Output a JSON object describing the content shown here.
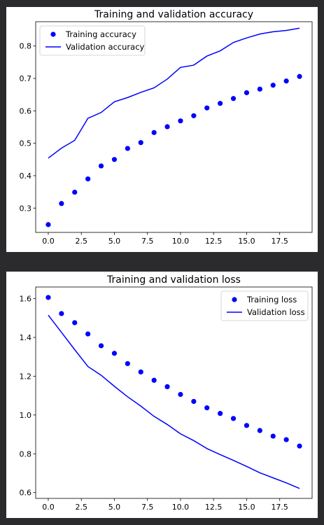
{
  "chart_data": [
    {
      "type": "line",
      "title": "Training and validation accuracy",
      "xlabel": "",
      "ylabel": "",
      "xlim": [
        -0.95,
        19.95
      ],
      "ylim": [
        0.225,
        0.875
      ],
      "xticks": [
        0.0,
        2.5,
        5.0,
        7.5,
        10.0,
        12.5,
        15.0,
        17.5
      ],
      "xtick_labels": [
        "0.0",
        "2.5",
        "5.0",
        "7.5",
        "10.0",
        "12.5",
        "15.0",
        "17.5"
      ],
      "yticks": [
        0.3,
        0.4,
        0.5,
        0.6,
        0.7,
        0.8
      ],
      "ytick_labels": [
        "0.3",
        "0.4",
        "0.5",
        "0.6",
        "0.7",
        "0.8"
      ],
      "legend_position": "upper-left",
      "grid": false,
      "x": [
        0,
        1,
        2,
        3,
        4,
        5,
        6,
        7,
        8,
        9,
        10,
        11,
        12,
        13,
        14,
        15,
        16,
        17,
        18,
        19
      ],
      "series": [
        {
          "name": "Training accuracy",
          "style": "markers",
          "color": "#0000ff",
          "values": [
            0.249,
            0.314,
            0.349,
            0.39,
            0.43,
            0.45,
            0.484,
            0.502,
            0.533,
            0.551,
            0.569,
            0.585,
            0.609,
            0.623,
            0.638,
            0.656,
            0.667,
            0.679,
            0.692,
            0.706
          ]
        },
        {
          "name": "Validation accuracy",
          "style": "line",
          "color": "#0000ff",
          "values": [
            0.454,
            0.485,
            0.509,
            0.577,
            0.595,
            0.628,
            0.641,
            0.657,
            0.671,
            0.698,
            0.734,
            0.741,
            0.769,
            0.785,
            0.811,
            0.825,
            0.837,
            0.844,
            0.848,
            0.855
          ]
        }
      ]
    },
    {
      "type": "line",
      "title": "Training and validation loss",
      "xlabel": "",
      "ylabel": "",
      "xlim": [
        -0.95,
        19.95
      ],
      "ylim": [
        0.57,
        1.66
      ],
      "xticks": [
        0.0,
        2.5,
        5.0,
        7.5,
        10.0,
        12.5,
        15.0,
        17.5
      ],
      "xtick_labels": [
        "0.0",
        "2.5",
        "5.0",
        "7.5",
        "10.0",
        "12.5",
        "15.0",
        "17.5"
      ],
      "yticks": [
        0.6,
        0.8,
        1.0,
        1.2,
        1.4,
        1.6
      ],
      "ytick_labels": [
        "0.6",
        "0.8",
        "1.0",
        "1.2",
        "1.4",
        "1.6"
      ],
      "legend_position": "upper-right",
      "grid": false,
      "x": [
        0,
        1,
        2,
        3,
        4,
        5,
        6,
        7,
        8,
        9,
        10,
        11,
        12,
        13,
        14,
        15,
        16,
        17,
        18,
        19
      ],
      "series": [
        {
          "name": "Training loss",
          "style": "markers",
          "color": "#0000ff",
          "values": [
            1.606,
            1.523,
            1.476,
            1.418,
            1.357,
            1.318,
            1.265,
            1.222,
            1.179,
            1.146,
            1.106,
            1.07,
            1.037,
            1.008,
            0.982,
            0.946,
            0.92,
            0.891,
            0.873,
            0.84
          ]
        },
        {
          "name": "Validation loss",
          "style": "line",
          "color": "#0000ff",
          "values": [
            1.515,
            1.426,
            1.337,
            1.25,
            1.205,
            1.148,
            1.094,
            1.046,
            0.993,
            0.951,
            0.903,
            0.868,
            0.827,
            0.796,
            0.766,
            0.735,
            0.702,
            0.676,
            0.65,
            0.621
          ]
        }
      ]
    }
  ]
}
